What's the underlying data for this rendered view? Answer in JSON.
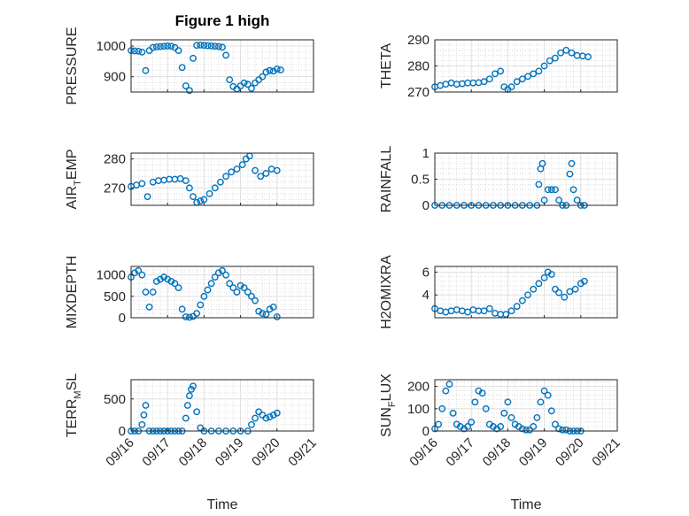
{
  "figure": {
    "title": "Figure 1 high",
    "xlabel": "Time",
    "x_ticks": [
      "09/16",
      "09/17",
      "09/18",
      "09/19",
      "09/20",
      "09/21"
    ]
  },
  "chart_data": [
    {
      "type": "scatter",
      "title": "Figure 1 high",
      "ylabel": [
        "PRESSURE",
        "",
        ""
      ],
      "ylim": [
        850,
        1020
      ],
      "yticks": [
        900,
        1000
      ],
      "xlim": [
        "09/16",
        "09/21"
      ],
      "grid": true,
      "x": [
        0,
        0.1,
        0.2,
        0.3,
        0.4,
        0.5,
        0.6,
        0.7,
        0.8,
        0.9,
        1.0,
        1.1,
        1.2,
        1.3,
        1.4,
        1.5,
        1.6,
        1.7,
        1.8,
        1.9,
        2.0,
        2.1,
        2.2,
        2.3,
        2.4,
        2.5,
        2.6,
        2.7,
        2.8,
        2.9,
        3.0,
        3.1,
        3.2,
        3.3,
        3.4,
        3.5,
        3.6,
        3.7,
        3.8,
        3.9,
        4.0,
        4.1
      ],
      "y": [
        985,
        984,
        983,
        980,
        920,
        985,
        995,
        997,
        998,
        999,
        1000,
        999,
        995,
        985,
        930,
        870,
        855,
        960,
        1002,
        1003,
        1002,
        1001,
        1000,
        999,
        998,
        996,
        970,
        890,
        868,
        860,
        870,
        880,
        875,
        862,
        880,
        890,
        900,
        915,
        920,
        918,
        925,
        922
      ]
    },
    {
      "type": "scatter",
      "ylabel": [
        "THETA",
        "",
        ""
      ],
      "ylim": [
        270,
        290
      ],
      "yticks": [
        270,
        280,
        290
      ],
      "grid": true,
      "x": [
        0,
        0.15,
        0.3,
        0.45,
        0.6,
        0.75,
        0.9,
        1.05,
        1.2,
        1.35,
        1.5,
        1.65,
        1.8,
        1.9,
        2.0,
        2.1,
        2.25,
        2.4,
        2.55,
        2.7,
        2.85,
        3.0,
        3.15,
        3.3,
        3.45,
        3.6,
        3.75,
        3.9,
        4.05,
        4.2
      ],
      "y": [
        272,
        272.5,
        273,
        273.5,
        273,
        273.2,
        273.5,
        273.5,
        273.6,
        274,
        275,
        277,
        278,
        272,
        271,
        272,
        274,
        275,
        276,
        277,
        278,
        280,
        282,
        283,
        285,
        286,
        285,
        284,
        283.8,
        283.5
      ]
    },
    {
      "type": "scatter",
      "ylabel": [
        "AIR",
        "T",
        "EMP"
      ],
      "ylim": [
        264,
        282
      ],
      "yticks": [
        270,
        280
      ],
      "grid": true,
      "x": [
        0,
        0.15,
        0.3,
        0.45,
        0.6,
        0.75,
        0.9,
        1.05,
        1.2,
        1.35,
        1.5,
        1.6,
        1.7,
        1.8,
        1.9,
        2.0,
        2.15,
        2.3,
        2.45,
        2.6,
        2.75,
        2.9,
        3.05,
        3.15,
        3.25,
        3.4,
        3.55,
        3.7,
        3.85,
        4.0
      ],
      "y": [
        270.5,
        271,
        271.5,
        267,
        272,
        272.5,
        272.7,
        273,
        273,
        273.2,
        272.5,
        270,
        267,
        265,
        265.5,
        266,
        268,
        270,
        272,
        274,
        275.5,
        276.5,
        278,
        280,
        281,
        276,
        274,
        275,
        276.5,
        276
      ]
    },
    {
      "type": "scatter",
      "ylabel": [
        "RAINFALL",
        "",
        ""
      ],
      "ylim": [
        0,
        1
      ],
      "yticks": [
        0,
        0.5,
        1
      ],
      "grid": true,
      "x": [
        0,
        0.2,
        0.4,
        0.6,
        0.8,
        1.0,
        1.2,
        1.4,
        1.6,
        1.8,
        2.0,
        2.2,
        2.4,
        2.6,
        2.8,
        2.85,
        2.9,
        2.95,
        3.0,
        3.1,
        3.2,
        3.3,
        3.4,
        3.5,
        3.6,
        3.7,
        3.75,
        3.8,
        3.9,
        4.0,
        4.1
      ],
      "y": [
        0,
        0,
        0,
        0,
        0,
        0,
        0,
        0,
        0,
        0,
        0,
        0,
        0,
        0,
        0,
        0.4,
        0.7,
        0.8,
        0.1,
        0.3,
        0.3,
        0.3,
        0.1,
        0,
        0,
        0.6,
        0.8,
        0.3,
        0.1,
        0,
        0
      ]
    },
    {
      "type": "scatter",
      "ylabel": [
        "MIXDEPTH",
        "",
        ""
      ],
      "ylim": [
        0,
        1200
      ],
      "yticks": [
        0,
        500,
        1000
      ],
      "grid": true,
      "x": [
        0,
        0.1,
        0.2,
        0.3,
        0.4,
        0.5,
        0.6,
        0.7,
        0.8,
        0.9,
        1.0,
        1.1,
        1.2,
        1.3,
        1.4,
        1.5,
        1.6,
        1.7,
        1.8,
        1.9,
        2.0,
        2.1,
        2.2,
        2.3,
        2.4,
        2.5,
        2.6,
        2.7,
        2.8,
        2.9,
        3.0,
        3.1,
        3.2,
        3.3,
        3.4,
        3.5,
        3.6,
        3.7,
        3.8,
        3.9,
        4.0
      ],
      "y": [
        950,
        1050,
        1100,
        1000,
        600,
        250,
        600,
        850,
        900,
        950,
        900,
        850,
        800,
        700,
        200,
        20,
        10,
        30,
        100,
        300,
        500,
        650,
        800,
        950,
        1050,
        1100,
        1000,
        800,
        700,
        600,
        750,
        700,
        600,
        500,
        400,
        150,
        100,
        80,
        200,
        250,
        20
      ]
    },
    {
      "type": "scatter",
      "ylabel": [
        "H2OMIXRA",
        "",
        ""
      ],
      "ylim": [
        2,
        6.5
      ],
      "yticks": [
        4,
        6
      ],
      "grid": true,
      "x": [
        0,
        0.15,
        0.3,
        0.45,
        0.6,
        0.75,
        0.9,
        1.05,
        1.2,
        1.35,
        1.5,
        1.65,
        1.8,
        1.95,
        2.1,
        2.25,
        2.4,
        2.55,
        2.7,
        2.85,
        3.0,
        3.1,
        3.2,
        3.3,
        3.4,
        3.55,
        3.7,
        3.85,
        4.0,
        4.1
      ],
      "y": [
        2.8,
        2.6,
        2.5,
        2.6,
        2.7,
        2.6,
        2.5,
        2.7,
        2.6,
        2.6,
        2.8,
        2.4,
        2.3,
        2.3,
        2.6,
        3.0,
        3.5,
        4.0,
        4.5,
        5.0,
        5.5,
        6.0,
        5.8,
        4.5,
        4.2,
        3.8,
        4.3,
        4.5,
        5.0,
        5.2
      ]
    },
    {
      "type": "scatter",
      "ylabel": [
        "TERR",
        "M",
        "SL"
      ],
      "ylim": [
        0,
        800
      ],
      "yticks": [
        0,
        500
      ],
      "grid": true,
      "x": [
        0,
        0.1,
        0.2,
        0.3,
        0.35,
        0.4,
        0.5,
        0.6,
        0.7,
        0.8,
        0.9,
        1.0,
        1.1,
        1.2,
        1.3,
        1.4,
        1.5,
        1.55,
        1.6,
        1.65,
        1.7,
        1.8,
        1.9,
        2.0,
        2.2,
        2.4,
        2.6,
        2.8,
        3.0,
        3.2,
        3.3,
        3.4,
        3.5,
        3.6,
        3.7,
        3.8,
        3.9,
        4.0
      ],
      "y": [
        0,
        0,
        0,
        100,
        250,
        400,
        0,
        0,
        0,
        0,
        0,
        0,
        0,
        0,
        0,
        0,
        200,
        400,
        550,
        650,
        700,
        300,
        50,
        0,
        0,
        0,
        0,
        0,
        0,
        0,
        100,
        200,
        300,
        250,
        200,
        220,
        250,
        280
      ]
    },
    {
      "type": "scatter",
      "ylabel": [
        "SUN",
        "F",
        "LUX"
      ],
      "ylim": [
        0,
        230
      ],
      "yticks": [
        0,
        100,
        200
      ],
      "grid": true,
      "x": [
        0,
        0.1,
        0.2,
        0.3,
        0.4,
        0.5,
        0.6,
        0.7,
        0.8,
        0.9,
        1.0,
        1.1,
        1.2,
        1.3,
        1.4,
        1.5,
        1.6,
        1.7,
        1.8,
        1.9,
        2.0,
        2.1,
        2.2,
        2.3,
        2.4,
        2.5,
        2.6,
        2.7,
        2.8,
        2.9,
        3.0,
        3.1,
        3.2,
        3.3,
        3.4,
        3.5,
        3.6,
        3.7,
        3.8,
        3.9,
        4.0
      ],
      "y": [
        10,
        30,
        100,
        180,
        210,
        80,
        30,
        20,
        10,
        20,
        40,
        130,
        180,
        170,
        100,
        30,
        20,
        10,
        20,
        80,
        130,
        60,
        30,
        20,
        10,
        5,
        5,
        20,
        60,
        130,
        180,
        160,
        90,
        30,
        10,
        5,
        5,
        0,
        0,
        0,
        0
      ]
    }
  ]
}
